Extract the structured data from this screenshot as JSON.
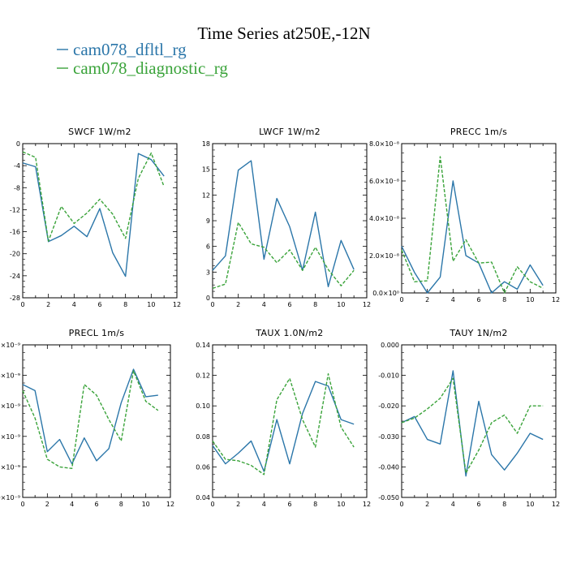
{
  "figure": {
    "title": "Time Series at250E,-12N",
    "series_colors": [
      "#2b76a9",
      "#3aa33a"
    ]
  },
  "chart_data": [
    {
      "type": "line",
      "title": "SWCF   1W/m2",
      "xlim": [
        0,
        12
      ],
      "ylim": [
        -28,
        0
      ],
      "xticks": [
        "0",
        "2",
        "4",
        "6",
        "8",
        "10",
        "12"
      ],
      "yticks": [
        "0",
        "-4",
        "-8",
        "-12",
        "-16",
        "-20",
        "-24",
        "-28"
      ],
      "ytick_values": [
        0,
        -4,
        -8,
        -12,
        -16,
        -20,
        -24,
        -28
      ],
      "x": [
        0,
        1,
        2,
        3,
        4,
        5,
        6,
        7,
        8,
        9,
        10,
        11
      ],
      "series": [
        {
          "name": "cam078_dfltl_rg",
          "values": [
            -3.5,
            -4.2,
            -17.8,
            -16.7,
            -15.0,
            -16.9,
            -11.8,
            -19.8,
            -24.1,
            -1.8,
            -2.9,
            -5.9
          ]
        },
        {
          "name": "cam078_diagnostic_rg",
          "values": [
            -1.5,
            -2.5,
            -17.7,
            -11.4,
            -14.5,
            -12.6,
            -10.1,
            -12.8,
            -17.2,
            -6.3,
            -1.7,
            -7.8
          ]
        }
      ],
      "grid": false
    },
    {
      "type": "line",
      "title": "LWCF   1W/m2",
      "xlim": [
        0,
        12
      ],
      "ylim": [
        0,
        18
      ],
      "xticks": [
        "0",
        "2",
        "4",
        "6",
        "8",
        "10",
        "12"
      ],
      "yticks": [
        "0",
        "3",
        "6",
        "9",
        "12",
        "15",
        "18"
      ],
      "ytick_values": [
        0,
        3,
        6,
        9,
        12,
        15,
        18
      ],
      "x": [
        0,
        1,
        2,
        3,
        4,
        5,
        6,
        7,
        8,
        9,
        10,
        11
      ],
      "series": [
        {
          "name": "cam078_dfltl_rg",
          "values": [
            3.2,
            4.9,
            14.9,
            16.0,
            4.5,
            11.6,
            8.3,
            3.2,
            10.0,
            1.3,
            6.7,
            3.3
          ]
        },
        {
          "name": "cam078_diagnostic_rg",
          "values": [
            1.1,
            1.6,
            8.8,
            6.3,
            5.9,
            4.1,
            5.6,
            3.2,
            5.9,
            3.3,
            1.4,
            3.2
          ]
        }
      ],
      "grid": false
    },
    {
      "type": "line",
      "title": "PRECC   1m/s",
      "xlim": [
        0,
        12
      ],
      "ylim": [
        0,
        8e-08
      ],
      "xticks": [
        "0",
        "2",
        "4",
        "6",
        "8",
        "10",
        "12"
      ],
      "yticks": [
        "0.0×10⁰",
        "2.0×10⁻⁸",
        "4.0×10⁻⁸",
        "6.0×10⁻⁸",
        "8.0×10⁻⁸"
      ],
      "ytick_values": [
        0,
        2e-08,
        4e-08,
        6e-08,
        8e-08
      ],
      "x": [
        0,
        1,
        2,
        3,
        4,
        5,
        6,
        7,
        8,
        9,
        10,
        11
      ],
      "series": [
        {
          "name": "cam078_dfltl_rg",
          "values": [
            2.5e-08,
            1.1e-08,
            0.0,
            8.5e-09,
            6e-08,
            2e-08,
            1.6e-08,
            0.0,
            6e-09,
            2e-09,
            1.5e-08,
            4e-09
          ]
        },
        {
          "name": "cam078_diagnostic_rg",
          "values": [
            2.3e-08,
            6e-09,
            6.5e-09,
            7.3e-08,
            1.7e-08,
            2.85e-08,
            1.6e-08,
            1.65e-08,
            0.0,
            1.4e-08,
            6e-09,
            2.5e-09
          ]
        }
      ],
      "grid": false
    },
    {
      "type": "line",
      "title": "PRECL   1m/s",
      "xlim": [
        0,
        12
      ],
      "ylim": [
        0,
        5e-09
      ],
      "xticks": [
        "0",
        "2",
        "4",
        "6",
        "8",
        "10",
        "12"
      ],
      "yticks": [
        "0×10⁻⁹",
        "1×10⁻⁹",
        "2×10⁻⁹",
        "3×10⁻⁹",
        "4×10⁻⁹",
        "5×10⁻⁹"
      ],
      "ytick_values": [
        0,
        1e-09,
        2e-09,
        3e-09,
        4e-09,
        5e-09
      ],
      "x": [
        0,
        1,
        2,
        3,
        4,
        5,
        6,
        7,
        8,
        9,
        10,
        11
      ],
      "series": [
        {
          "name": "cam078_dfltl_rg",
          "values": [
            3.7e-09,
            3.5e-09,
            1.5e-09,
            1.9e-09,
            1.1e-09,
            1.95e-09,
            1.2e-09,
            1.6e-09,
            3.1e-09,
            4.2e-09,
            3.3e-09,
            3.35e-09
          ]
        },
        {
          "name": "cam078_diagnostic_rg",
          "values": [
            3.5e-09,
            2.6e-09,
            1.25e-09,
            1e-09,
            9.5e-10,
            3.7e-09,
            3.35e-09,
            2.55e-09,
            1.85e-09,
            4.15e-09,
            3.15e-09,
            2.85e-09
          ]
        }
      ],
      "grid": false
    },
    {
      "type": "line",
      "title": "TAUX   1.0N/m2",
      "xlim": [
        0,
        12
      ],
      "ylim": [
        0.04,
        0.14
      ],
      "xticks": [
        "0",
        "2",
        "4",
        "6",
        "8",
        "10",
        "12"
      ],
      "yticks": [
        "0.04",
        "0.06",
        "0.08",
        "0.10",
        "0.12",
        "0.14"
      ],
      "ytick_values": [
        0.04,
        0.06,
        0.08,
        0.1,
        0.12,
        0.14
      ],
      "x": [
        0,
        1,
        2,
        3,
        4,
        5,
        6,
        7,
        8,
        9,
        10,
        11
      ],
      "series": [
        {
          "name": "cam078_dfltl_rg",
          "values": [
            0.074,
            0.062,
            0.069,
            0.077,
            0.057,
            0.091,
            0.062,
            0.095,
            0.116,
            0.113,
            0.091,
            0.088
          ]
        },
        {
          "name": "cam078_diagnostic_rg",
          "values": [
            0.077,
            0.065,
            0.064,
            0.061,
            0.055,
            0.104,
            0.118,
            0.091,
            0.073,
            0.121,
            0.086,
            0.073
          ]
        }
      ],
      "grid": false
    },
    {
      "type": "line",
      "title": "TAUY   1N/m2",
      "xlim": [
        0,
        12
      ],
      "ylim": [
        -0.05,
        0.0
      ],
      "xticks": [
        "0",
        "2",
        "4",
        "6",
        "8",
        "10",
        "12"
      ],
      "yticks": [
        "0.000",
        "-0.010",
        "-0.020",
        "-0.030",
        "-0.040",
        "-0.050"
      ],
      "ytick_values": [
        0,
        -0.01,
        -0.02,
        -0.03,
        -0.04,
        -0.05
      ],
      "x": [
        0,
        1,
        2,
        3,
        4,
        5,
        6,
        7,
        8,
        9,
        10,
        11
      ],
      "series": [
        {
          "name": "cam078_dfltl_rg",
          "values": [
            -0.0255,
            -0.0235,
            -0.031,
            -0.0325,
            -0.0085,
            -0.043,
            -0.0185,
            -0.036,
            -0.041,
            -0.0355,
            -0.029,
            -0.031
          ]
        },
        {
          "name": "cam078_diagnostic_rg",
          "values": [
            -0.0255,
            -0.024,
            -0.021,
            -0.0175,
            -0.011,
            -0.042,
            -0.0345,
            -0.0255,
            -0.023,
            -0.029,
            -0.02,
            -0.02
          ]
        }
      ],
      "grid": false
    }
  ]
}
